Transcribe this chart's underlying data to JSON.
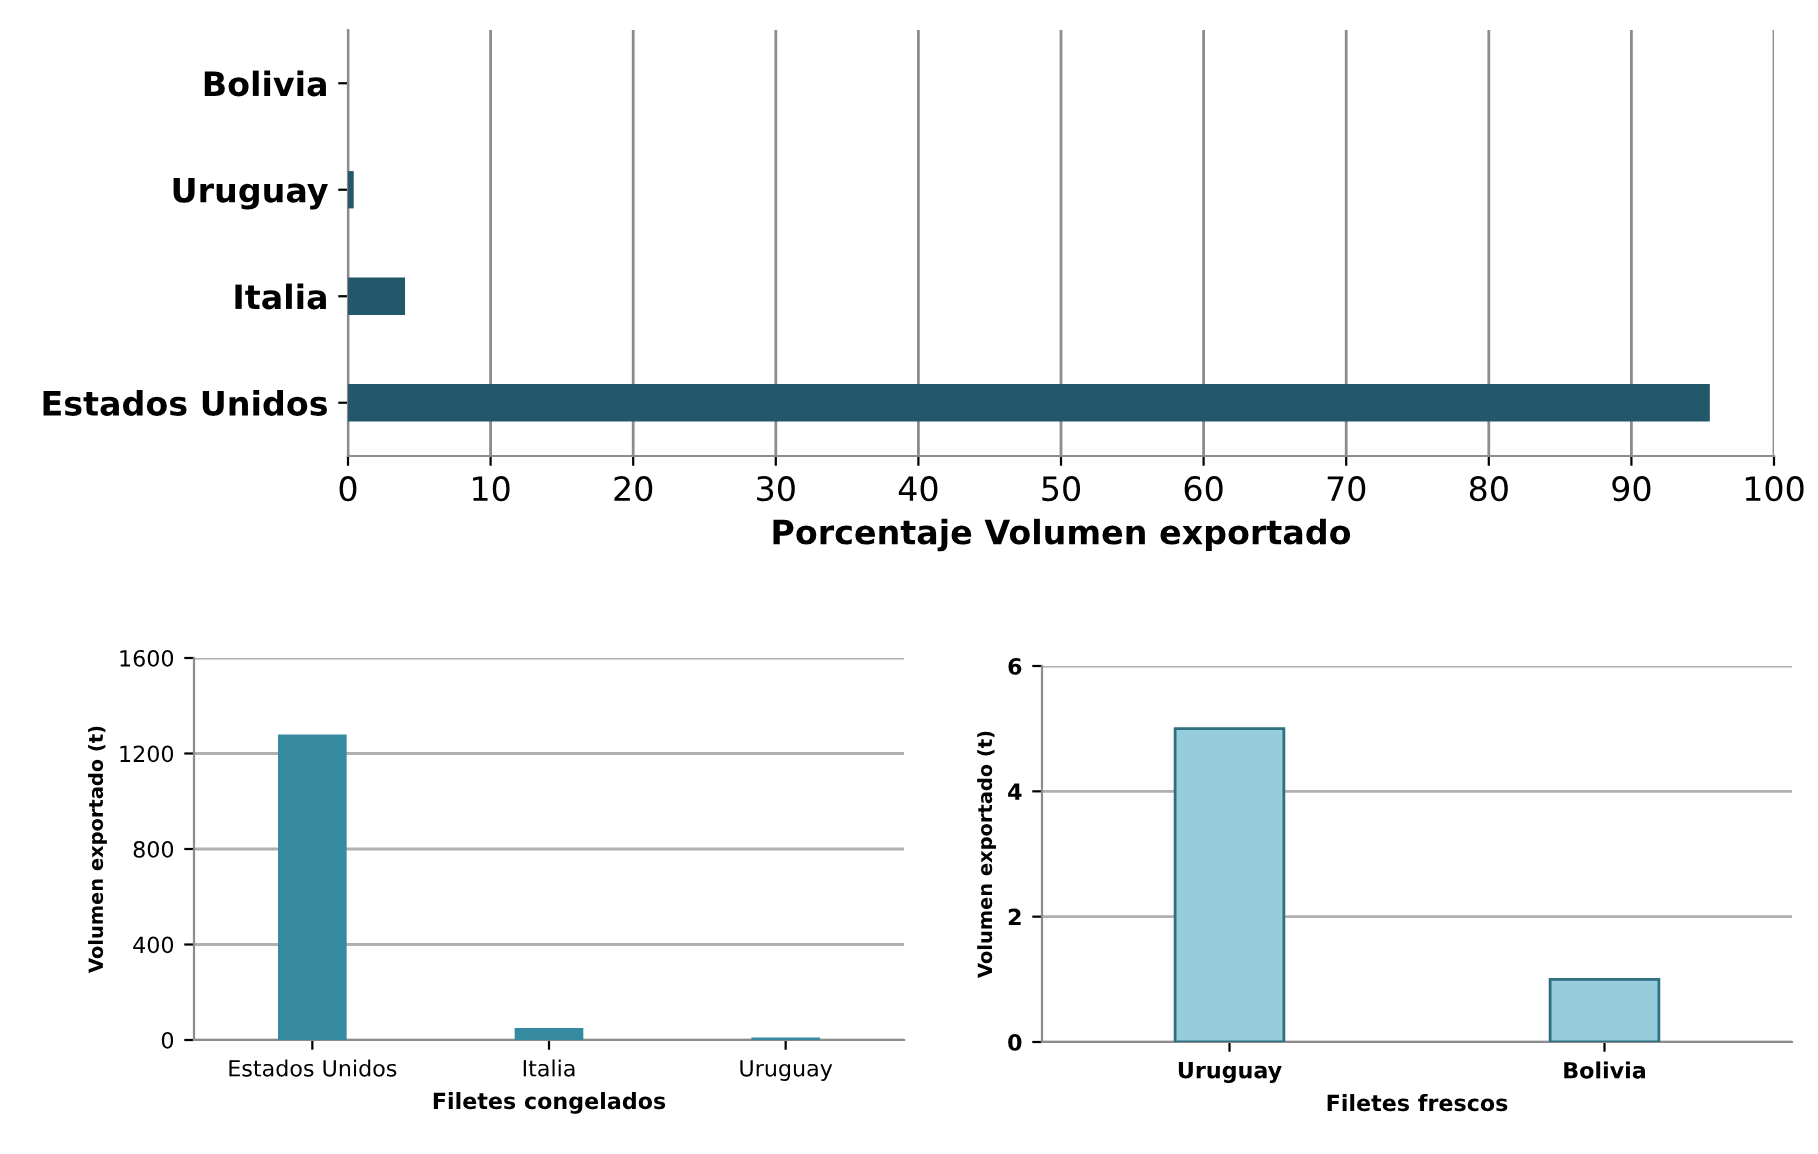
{
  "chart_data": [
    {
      "type": "bar",
      "orientation": "horizontal",
      "categories": [
        "Bolivia",
        "Uruguay",
        "Italia",
        "Estados Unidos"
      ],
      "values": [
        0,
        0.4,
        4,
        95.5
      ],
      "color": "#23586a",
      "xlabel": "Porcentaje Volumen exportado",
      "xlim": [
        0,
        100
      ],
      "xticks": [
        0,
        10,
        20,
        30,
        40,
        50,
        60,
        70,
        80,
        90,
        100
      ],
      "grid": "x"
    },
    {
      "type": "bar",
      "categories": [
        "Estados Unidos",
        "Italia",
        "Uruguay"
      ],
      "values": [
        1280,
        50,
        10
      ],
      "color": "#358a9f",
      "xlabel": "Filetes congelados",
      "ylabel": "Volumen exportado (t)",
      "ylim": [
        0,
        1600
      ],
      "yticks": [
        0,
        400,
        800,
        1200,
        1600
      ],
      "grid": "y"
    },
    {
      "type": "bar",
      "categories": [
        "Uruguay",
        "Bolivia"
      ],
      "values": [
        5,
        1
      ],
      "color": "#96cddd",
      "xlabel": "Filetes frescos",
      "ylabel": "Volumen exportado (t)",
      "ylim": [
        0,
        6
      ],
      "yticks": [
        0,
        2,
        4,
        6
      ],
      "grid": "y"
    }
  ]
}
